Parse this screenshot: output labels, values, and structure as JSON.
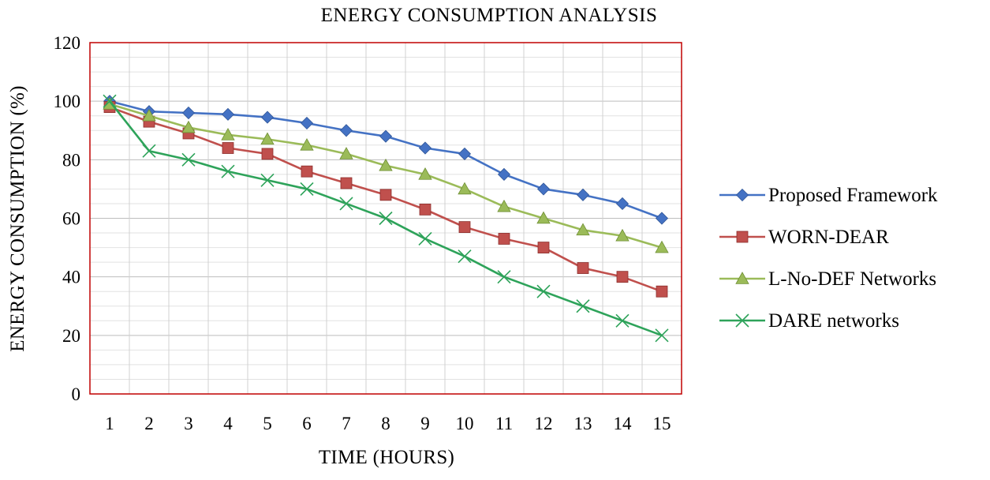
{
  "chart_data": {
    "type": "line",
    "title": "ENERGY CONSUMPTION ANALYSIS",
    "xlabel": "TIME (HOURS)",
    "ylabel": "ENERGY CONSUMPTION (%)",
    "x": [
      1,
      2,
      3,
      4,
      5,
      6,
      7,
      8,
      9,
      10,
      11,
      12,
      13,
      14,
      15
    ],
    "ylim": [
      0,
      120
    ],
    "yticks": [
      0,
      20,
      40,
      60,
      80,
      100,
      120
    ],
    "grid": true,
    "legend_position": "right",
    "series": [
      {
        "name": "Proposed Framework",
        "color": "#4472C4",
        "marker": "diamond",
        "values": [
          100,
          96.5,
          96,
          95.5,
          94.5,
          92.5,
          90,
          88,
          84,
          82,
          75,
          70,
          68,
          65,
          60
        ]
      },
      {
        "name": "WORN-DEAR",
        "color": "#C0504D",
        "marker": "square",
        "values": [
          98,
          93,
          89,
          84,
          82,
          76,
          72,
          68,
          63,
          57,
          53,
          50,
          43,
          40,
          35
        ]
      },
      {
        "name": "L-No-DEF Networks",
        "color": "#9BBB59",
        "marker": "triangle",
        "values": [
          99,
          95,
          91,
          88.5,
          87,
          85,
          82,
          78,
          75,
          70,
          64,
          60,
          56,
          54,
          50
        ]
      },
      {
        "name": "DARE networks",
        "color": "#2EA35A",
        "marker": "x",
        "values": [
          100,
          83,
          80,
          76,
          73,
          70,
          65,
          60,
          53,
          47,
          40,
          35,
          30,
          25,
          20
        ]
      }
    ]
  }
}
